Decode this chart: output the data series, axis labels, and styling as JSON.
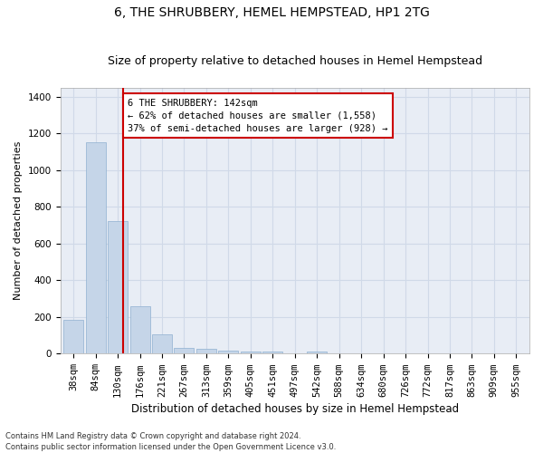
{
  "title": "6, THE SHRUBBERY, HEMEL HEMPSTEAD, HP1 2TG",
  "subtitle": "Size of property relative to detached houses in Hemel Hempstead",
  "xlabel": "Distribution of detached houses by size in Hemel Hempstead",
  "ylabel": "Number of detached properties",
  "categories": [
    "38sqm",
    "84sqm",
    "130sqm",
    "176sqm",
    "221sqm",
    "267sqm",
    "313sqm",
    "359sqm",
    "405sqm",
    "451sqm",
    "497sqm",
    "542sqm",
    "588sqm",
    "634sqm",
    "680sqm",
    "726sqm",
    "772sqm",
    "817sqm",
    "863sqm",
    "909sqm",
    "955sqm"
  ],
  "values": [
    185,
    1150,
    720,
    260,
    105,
    30,
    28,
    18,
    10,
    10,
    0,
    12,
    0,
    0,
    0,
    0,
    0,
    0,
    0,
    0,
    0
  ],
  "bar_color": "#c5d5e8",
  "bar_edge_color": "#8fb0d0",
  "grid_color": "#d0d9e8",
  "background_color": "#e8edf5",
  "annotation_line1": "6 THE SHRUBBERY: 142sqm",
  "annotation_line2": "← 62% of detached houses are smaller (1,558)",
  "annotation_line3": "37% of semi-detached houses are larger (928) →",
  "annotation_box_color": "#ffffff",
  "annotation_box_edge": "#cc0000",
  "marker_color": "#cc0000",
  "ylim": [
    0,
    1450
  ],
  "yticks": [
    0,
    200,
    400,
    600,
    800,
    1000,
    1200,
    1400
  ],
  "footnote1": "Contains HM Land Registry data © Crown copyright and database right 2024.",
  "footnote2": "Contains public sector information licensed under the Open Government Licence v3.0.",
  "title_fontsize": 10,
  "subtitle_fontsize": 9,
  "xlabel_fontsize": 8.5,
  "ylabel_fontsize": 8,
  "tick_fontsize": 7.5,
  "annot_fontsize": 7.5,
  "footnote_fontsize": 6
}
